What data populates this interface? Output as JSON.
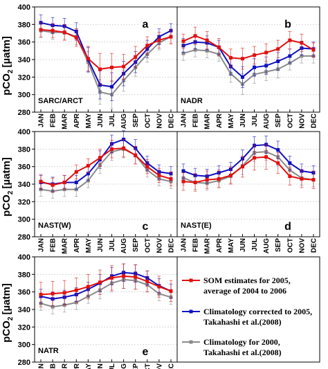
{
  "chart_data": {
    "type": "line",
    "y_axis_label": "pCO",
    "y_axis_label_subscript": "2",
    "y_axis_label_unit": "[µatm]",
    "ylim": [
      280,
      400
    ],
    "yticks": [
      280,
      300,
      320,
      340,
      360,
      380,
      400
    ],
    "grid": true,
    "legend_position": "right of bottom panel",
    "categories": [
      "JAN",
      "FEB",
      "MAR",
      "APR",
      "MAY",
      "JUN",
      "JUL",
      "AUG",
      "SEP",
      "OCT",
      "NOV",
      "DEC"
    ],
    "series_styles": [
      {
        "key": "som",
        "color": "#e01010"
      },
      {
        "key": "corr",
        "color": "#1010c0"
      },
      {
        "key": "clim",
        "color": "#8a8a8a"
      }
    ],
    "legend": [
      {
        "key": "som",
        "line1": "SOM estimates for 2005,",
        "line2": "average of 2004 to 2006"
      },
      {
        "key": "corr",
        "line1": "Climatology corrected to 2005,",
        "line2": "Takahashi et al.(2008)"
      },
      {
        "key": "clim",
        "line1": "Climatology for 2000,",
        "line2": "Takahashi et al.(2008)"
      }
    ],
    "panels": [
      {
        "id": "a",
        "region": "SARC/ARCT",
        "som": [
          374,
          373,
          371,
          365,
          341,
          329,
          331,
          332,
          343,
          356,
          362,
          366
        ],
        "som_err": [
          8,
          8,
          9,
          10,
          14,
          18,
          16,
          14,
          12,
          10,
          9,
          8
        ],
        "corr": [
          382,
          379,
          378,
          372,
          340,
          311,
          309,
          324,
          337,
          352,
          366,
          373
        ],
        "corr_err": [
          9,
          9,
          9,
          10,
          14,
          16,
          16,
          14,
          12,
          10,
          9,
          8
        ],
        "clim": [
          373,
          371,
          371,
          366,
          337,
          303,
          300,
          316,
          331,
          346,
          359,
          366
        ],
        "clim_err": [
          8,
          8,
          8,
          9,
          12,
          14,
          16,
          12,
          10,
          9,
          8,
          8
        ]
      },
      {
        "id": "b",
        "region": "NADR",
        "som": [
          361,
          367,
          362,
          354,
          342,
          341,
          345,
          348,
          352,
          362,
          359,
          351
        ],
        "som_err": [
          8,
          10,
          10,
          10,
          10,
          12,
          10,
          10,
          10,
          10,
          10,
          8
        ],
        "corr": [
          356,
          360,
          359,
          354,
          332,
          320,
          331,
          333,
          338,
          344,
          353,
          352
        ],
        "corr_err": [
          8,
          8,
          8,
          8,
          10,
          12,
          10,
          10,
          10,
          8,
          8,
          8
        ],
        "clim": [
          347,
          351,
          350,
          346,
          324,
          312,
          323,
          326,
          329,
          336,
          344,
          344
        ],
        "clim_err": [
          8,
          8,
          8,
          8,
          10,
          12,
          10,
          10,
          10,
          8,
          8,
          8
        ]
      },
      {
        "id": "c",
        "region": "NAST(W)",
        "som": [
          343,
          339,
          342,
          354,
          361,
          370,
          380,
          381,
          373,
          360,
          350,
          346
        ],
        "som_err": [
          8,
          8,
          8,
          8,
          8,
          10,
          10,
          10,
          10,
          8,
          8,
          8
        ],
        "corr": [
          342,
          340,
          342,
          342,
          352,
          368,
          386,
          391,
          381,
          364,
          354,
          352
        ],
        "corr_err": [
          8,
          8,
          8,
          8,
          8,
          10,
          10,
          10,
          10,
          8,
          8,
          8
        ],
        "clim": [
          334,
          332,
          334,
          334,
          344,
          362,
          377,
          380,
          373,
          356,
          346,
          343
        ],
        "clim_err": [
          8,
          8,
          8,
          8,
          8,
          10,
          10,
          10,
          10,
          8,
          8,
          8
        ]
      },
      {
        "id": "d",
        "region": "NAST(E)",
        "som": [
          343,
          342,
          345,
          346,
          350,
          360,
          370,
          371,
          364,
          349,
          346,
          345
        ],
        "som_err": [
          10,
          10,
          10,
          10,
          10,
          12,
          14,
          14,
          12,
          10,
          10,
          10
        ],
        "corr": [
          355,
          350,
          349,
          353,
          357,
          369,
          384,
          385,
          379,
          364,
          355,
          353
        ],
        "corr_err": [
          8,
          8,
          8,
          8,
          8,
          10,
          10,
          10,
          10,
          8,
          8,
          8
        ],
        "clim": [
          347,
          342,
          341,
          344,
          349,
          361,
          376,
          377,
          371,
          356,
          347,
          345
        ],
        "clim_err": [
          8,
          8,
          8,
          8,
          8,
          10,
          10,
          10,
          10,
          8,
          8,
          8
        ]
      },
      {
        "id": "e",
        "region": "NATR",
        "som": [
          357,
          358,
          359,
          362,
          366,
          371,
          376,
          378,
          377,
          372,
          366,
          361
        ],
        "som_err": [
          14,
          14,
          14,
          14,
          14,
          14,
          14,
          14,
          14,
          12,
          12,
          12
        ],
        "corr": [
          355,
          352,
          354,
          357,
          363,
          370,
          378,
          382,
          381,
          376,
          367,
          361
        ],
        "corr_err": [
          8,
          8,
          8,
          8,
          8,
          10,
          10,
          10,
          10,
          8,
          8,
          8
        ],
        "clim": [
          347,
          343,
          345,
          348,
          355,
          362,
          370,
          374,
          373,
          368,
          358,
          354
        ],
        "clim_err": [
          8,
          8,
          8,
          8,
          8,
          10,
          10,
          10,
          10,
          8,
          8,
          8
        ]
      }
    ]
  }
}
